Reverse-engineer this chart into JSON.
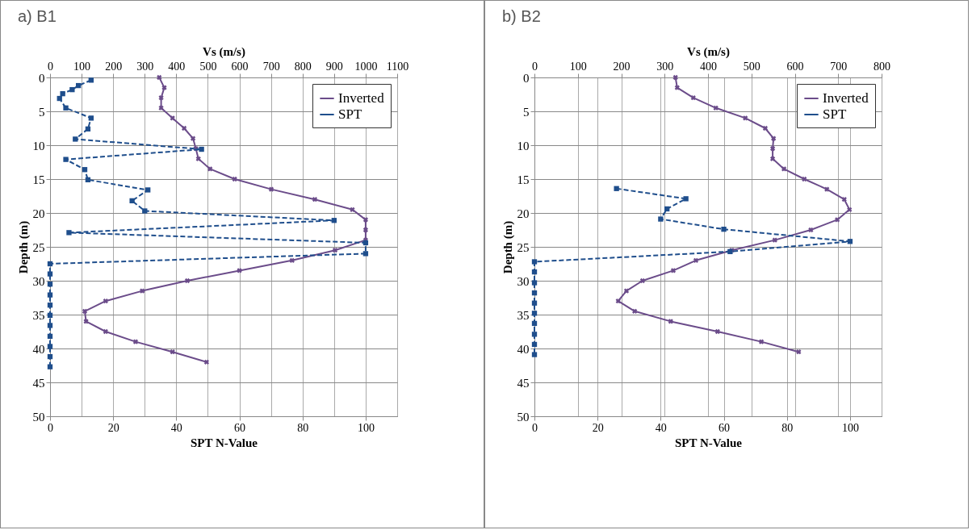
{
  "chart_data": [
    {
      "type": "line",
      "title": "a)  B1",
      "xlabel": "SPT N-Value",
      "x2label": "Vs (m/s)",
      "ylabel": "Depth (m)",
      "xlim": [
        0,
        110
      ],
      "xticks": [
        0,
        20,
        40,
        60,
        80,
        100
      ],
      "x2lim": [
        0,
        1100
      ],
      "x2ticks": [
        0,
        100,
        200,
        300,
        400,
        500,
        600,
        700,
        800,
        900,
        1000,
        1100
      ],
      "ylim": [
        50,
        0
      ],
      "yticks": [
        0,
        5,
        10,
        15,
        20,
        25,
        30,
        35,
        40,
        45,
        50
      ],
      "grid": true,
      "legend": "top right",
      "series": [
        {
          "name": "Inverted",
          "axis": "x2",
          "color": "#6b4c8a",
          "marker": "cross",
          "line_style": "solid",
          "x": [
            346,
            362,
            352,
            352,
            388,
            425,
            453,
            462,
            470,
            507,
            585,
            701,
            839,
            958,
            1000,
            1000,
            1000,
            903,
            767,
            600,
            435,
            292,
            176,
            110,
            114,
            176,
            271,
            388,
            496
          ],
          "values": [
            0,
            1.5,
            3,
            4.5,
            6,
            7.5,
            9,
            10.5,
            12,
            13.5,
            15,
            16.5,
            18,
            19.5,
            21,
            22.5,
            24,
            25.5,
            27,
            28.5,
            30,
            31.5,
            33,
            34.5,
            36,
            37.5,
            39,
            40.5,
            42
          ]
        },
        {
          "name": "SPT",
          "color": "#1f4e8c",
          "marker": "square",
          "line_style": "dashed",
          "x": [
            13,
            9,
            7,
            4,
            3,
            5,
            13,
            12,
            8,
            48,
            5,
            11,
            12,
            31,
            26,
            30,
            90,
            6,
            100,
            100,
            0,
            0,
            0,
            0,
            0,
            0,
            0,
            0,
            0,
            0,
            0
          ],
          "values": [
            0.4,
            1.2,
            1.8,
            2.4,
            3.1,
            4.5,
            6,
            7.6,
            9.1,
            10.6,
            12.1,
            13.6,
            15.1,
            16.6,
            18.2,
            19.7,
            21.1,
            22.9,
            24.4,
            26,
            27.5,
            29,
            30.5,
            32.1,
            33.6,
            35.1,
            36.6,
            38.2,
            39.7,
            41.2,
            42.7
          ]
        }
      ]
    },
    {
      "type": "line",
      "title": "b)  B2",
      "xlabel": "SPT N-Value",
      "x2label": "Vs (m/s)",
      "ylabel": "Depth (m)",
      "xlim": [
        0,
        110
      ],
      "xticks": [
        0,
        20,
        40,
        60,
        80,
        100
      ],
      "x2lim": [
        0,
        800
      ],
      "x2ticks": [
        0,
        100,
        200,
        300,
        400,
        500,
        600,
        700,
        800
      ],
      "ylim": [
        50,
        0
      ],
      "yticks": [
        0,
        5,
        10,
        15,
        20,
        25,
        30,
        35,
        40,
        45,
        50
      ],
      "grid": true,
      "legend": "top right",
      "series": [
        {
          "name": "Inverted",
          "axis": "x2",
          "color": "#6b4c8a",
          "marker": "cross",
          "line_style": "solid",
          "x": [
            325,
            329,
            366,
            418,
            486,
            532,
            551,
            549,
            549,
            575,
            622,
            674,
            714,
            726,
            698,
            637,
            554,
            455,
            372,
            320,
            249,
            212,
            193,
            231,
            314,
            422,
            523,
            609
          ],
          "values": [
            0,
            1.5,
            3,
            4.5,
            6,
            7.5,
            9,
            10.5,
            12,
            13.5,
            15,
            16.5,
            18,
            19.5,
            21,
            22.5,
            24,
            25.5,
            27,
            28.5,
            30,
            31.5,
            33,
            34.5,
            36,
            37.5,
            39,
            40.5
          ]
        },
        {
          "name": "SPT",
          "color": "#1f4e8c",
          "marker": "square",
          "line_style": "dashed",
          "x": [
            26,
            48,
            42,
            40,
            60,
            100,
            62,
            0,
            0,
            0,
            0,
            0,
            0,
            0,
            0,
            0,
            0
          ],
          "values": [
            16.4,
            17.9,
            19.4,
            20.9,
            22.4,
            24.2,
            25.7,
            27.2,
            28.7,
            30.3,
            31.8,
            33.3,
            34.8,
            36.3,
            37.9,
            39.4,
            40.9
          ]
        }
      ]
    }
  ]
}
